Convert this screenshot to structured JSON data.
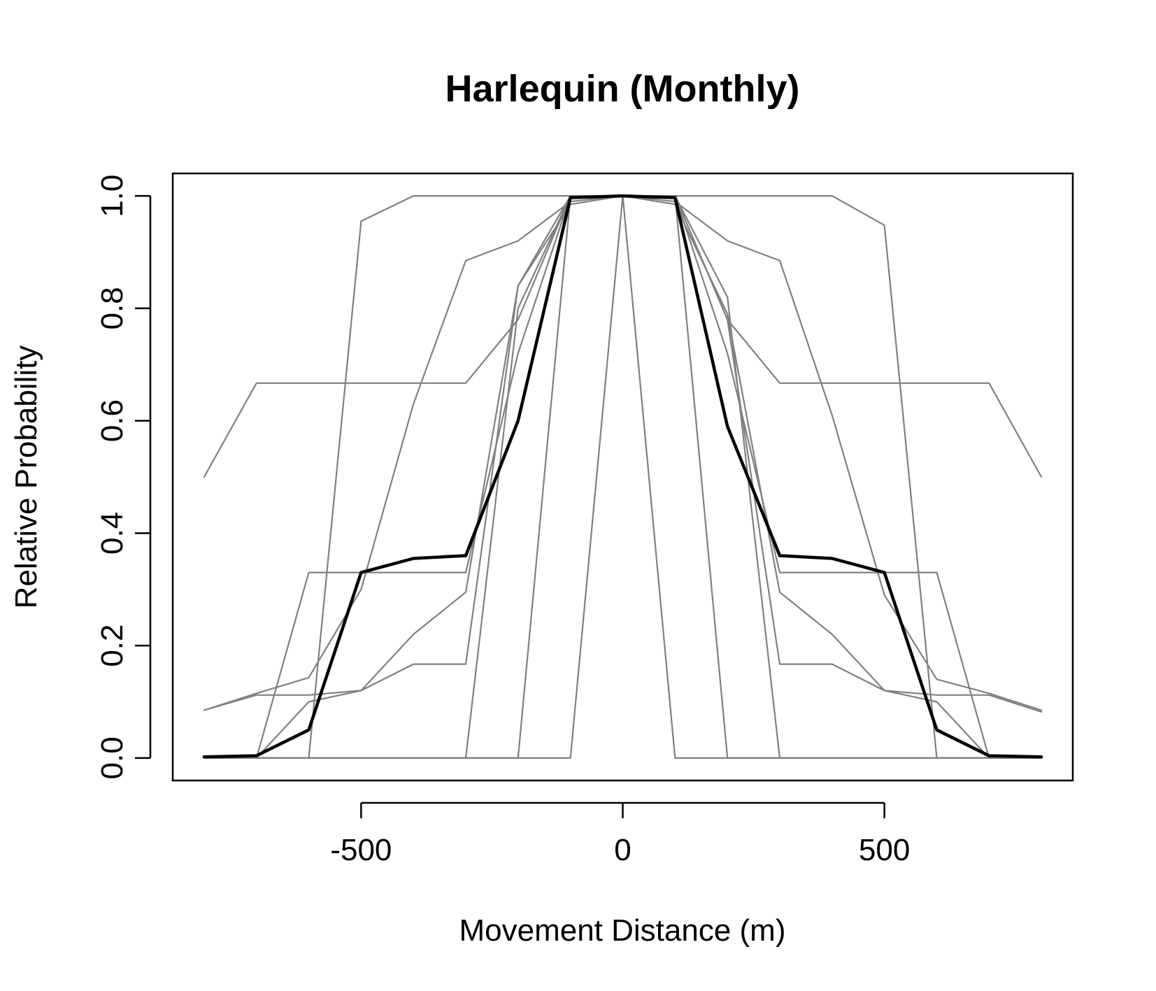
{
  "chart_data": {
    "type": "line",
    "title": "Harlequin (Monthly)",
    "xlabel": "Movement Distance (m)",
    "ylabel": "Relative Probability",
    "xlim": [
      -860,
      860
    ],
    "ylim": [
      -0.04,
      1.04
    ],
    "x_ticks": [
      -500,
      0,
      500
    ],
    "y_ticks": [
      0.0,
      0.2,
      0.4,
      0.6,
      0.8,
      1.0
    ],
    "x_tick_labels": [
      "-500",
      "0",
      "500"
    ],
    "y_tick_labels": [
      "0.0",
      "0.2",
      "0.4",
      "0.6",
      "0.8",
      "1.0"
    ],
    "grid": false,
    "legend": "none",
    "x": [
      -800,
      -700,
      -600,
      -500,
      -400,
      -300,
      -200,
      -100,
      0,
      100,
      200,
      300,
      400,
      500,
      600,
      700,
      800
    ],
    "colors": {
      "individual": "#808080",
      "mean": "#000000"
    },
    "series": [
      {
        "role": "individual",
        "values": [
          0.5,
          0.667,
          0.667,
          0.667,
          0.667,
          0.667,
          0.78,
          1.0,
          1.0,
          1.0,
          0.78,
          0.667,
          0.667,
          0.667,
          0.667,
          0.667,
          0.5
        ]
      },
      {
        "role": "individual",
        "values": [
          0.0,
          0.0,
          0.0,
          0.955,
          1.0,
          1.0,
          1.0,
          1.0,
          1.0,
          1.0,
          1.0,
          1.0,
          1.0,
          0.948,
          0.0,
          0.0,
          0.0
        ]
      },
      {
        "role": "individual",
        "values": [
          0.0,
          0.0,
          0.0,
          0.0,
          0.0,
          0.0,
          0.0,
          0.0,
          1.0,
          0.0,
          0.0,
          0.0,
          0.0,
          0.0,
          0.0,
          0.0,
          0.0
        ]
      },
      {
        "role": "individual",
        "values": [
          0.0,
          0.0,
          0.0,
          0.0,
          0.0,
          0.0,
          0.0,
          1.0,
          1.0,
          1.0,
          0.0,
          0.0,
          0.0,
          0.0,
          0.0,
          0.0,
          0.0
        ]
      },
      {
        "role": "individual",
        "values": [
          0.0,
          0.0,
          0.0,
          0.0,
          0.0,
          0.0,
          0.8,
          1.0,
          1.0,
          1.0,
          0.82,
          0.0,
          0.0,
          0.0,
          0.0,
          0.0,
          0.0
        ]
      },
      {
        "role": "individual",
        "values": [
          0.0,
          0.0,
          0.33,
          0.33,
          0.33,
          0.33,
          0.72,
          1.0,
          1.0,
          1.0,
          0.72,
          0.33,
          0.33,
          0.33,
          0.33,
          0.0,
          0.0
        ]
      },
      {
        "role": "individual",
        "values": [
          0.085,
          0.115,
          0.143,
          0.3,
          0.63,
          0.885,
          0.92,
          0.99,
          1.0,
          0.99,
          0.92,
          0.885,
          0.61,
          0.29,
          0.14,
          0.115,
          0.085
        ]
      },
      {
        "role": "individual",
        "values": [
          0.085,
          0.112,
          0.112,
          0.12,
          0.167,
          0.167,
          0.84,
          1.0,
          1.0,
          1.0,
          0.78,
          0.167,
          0.167,
          0.12,
          0.112,
          0.112,
          0.082
        ]
      },
      {
        "role": "individual",
        "values": [
          0.0,
          0.0,
          0.1,
          0.12,
          0.22,
          0.295,
          0.84,
          0.985,
          1.0,
          0.985,
          0.79,
          0.295,
          0.22,
          0.12,
          0.1,
          0.0,
          0.0
        ]
      },
      {
        "role": "mean",
        "values": [
          0.002,
          0.004,
          0.05,
          0.33,
          0.355,
          0.36,
          0.6,
          0.997,
          1.0,
          0.997,
          0.59,
          0.36,
          0.355,
          0.33,
          0.05,
          0.004,
          0.002
        ]
      }
    ]
  }
}
